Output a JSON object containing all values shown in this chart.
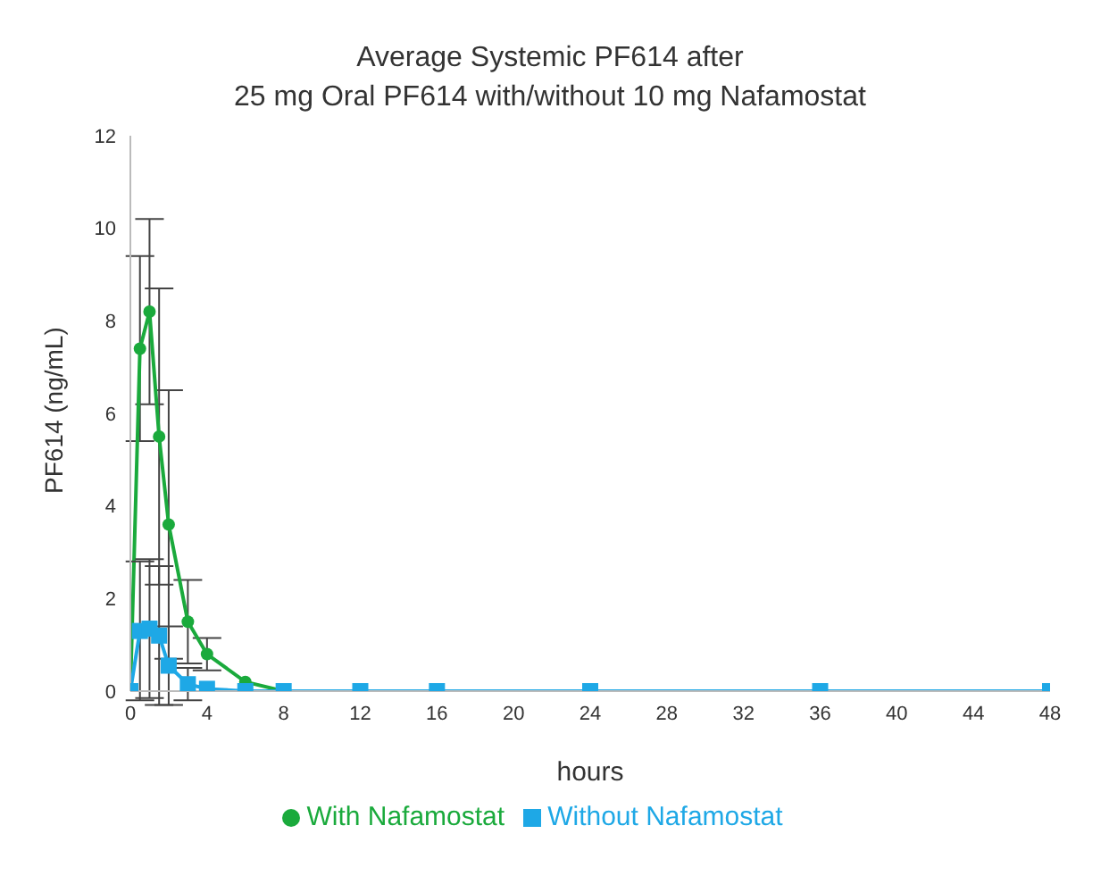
{
  "chart_data": {
    "type": "line",
    "title": "Average Systemic PF614 after\n25 mg Oral PF614 with/without 10 mg Nafamostat",
    "xlabel": "hours",
    "ylabel": "PF614 (ng/mL)",
    "x": [
      0,
      0.5,
      1,
      1.5,
      2,
      3,
      4,
      6,
      8,
      12,
      16,
      24,
      36,
      48
    ],
    "series": [
      {
        "name": "With Nafamostat",
        "color": "#1aaa3c",
        "marker": "circle",
        "values": [
          0,
          7.4,
          8.2,
          5.5,
          3.6,
          1.5,
          0.8,
          0.2,
          0,
          null,
          null,
          null,
          null,
          null
        ],
        "errors": [
          null,
          2.0,
          2.0,
          3.2,
          2.9,
          0.9,
          0.35,
          null,
          null,
          null,
          null,
          null,
          null,
          null
        ]
      },
      {
        "name": "Without Nafamostat",
        "color": "#1ea8e6",
        "marker": "square",
        "values": [
          0,
          1.3,
          1.35,
          1.2,
          0.55,
          0.15,
          0.05,
          0,
          0,
          0,
          0,
          0,
          0,
          0
        ],
        "errors": [
          null,
          1.5,
          1.5,
          1.5,
          0.85,
          0.35,
          null,
          null,
          null,
          null,
          null,
          null,
          null,
          null
        ]
      }
    ],
    "xlim": [
      0,
      48
    ],
    "xticks": [
      0,
      4,
      8,
      12,
      16,
      20,
      24,
      28,
      32,
      36,
      40,
      44,
      48
    ],
    "ylim": [
      0,
      12
    ],
    "yticks": [
      0,
      2,
      4,
      6,
      8,
      10,
      12
    ],
    "grid": false,
    "legend": "bottom"
  }
}
